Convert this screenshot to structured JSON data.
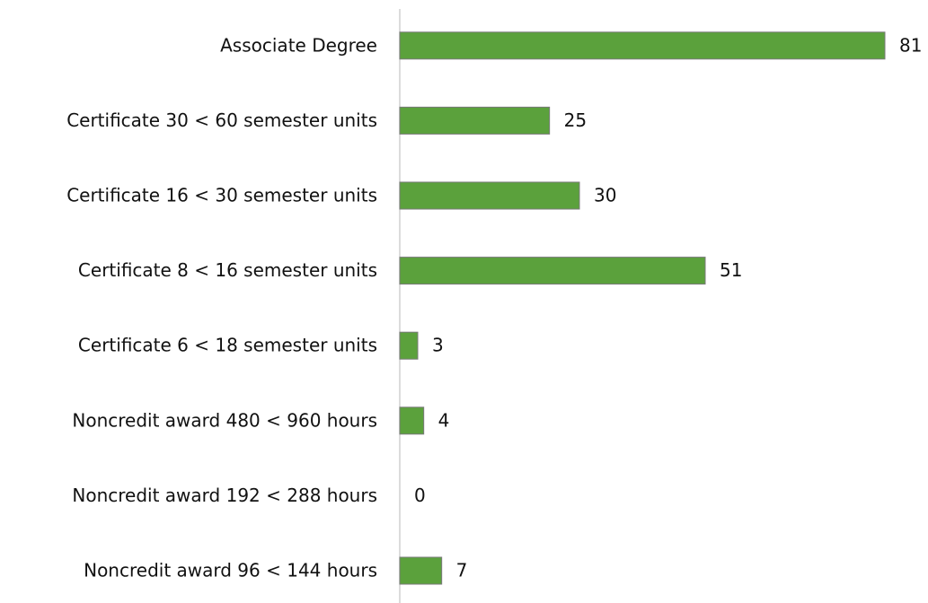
{
  "chart_data": {
    "type": "bar",
    "orientation": "horizontal",
    "categories": [
      "Associate Degree",
      "Certificate 30 < 60 semester units",
      "Certificate 16 < 30 semester units",
      "Certificate 8 < 16 semester units",
      "Certificate 6 < 18 semester units",
      "Noncredit award 480 < 960 hours",
      "Noncredit award 192 < 288 hours",
      "Noncredit award 96 < 144 hours"
    ],
    "values": [
      81,
      25,
      30,
      51,
      3,
      4,
      0,
      7
    ],
    "color": "#5ba13c"
  }
}
